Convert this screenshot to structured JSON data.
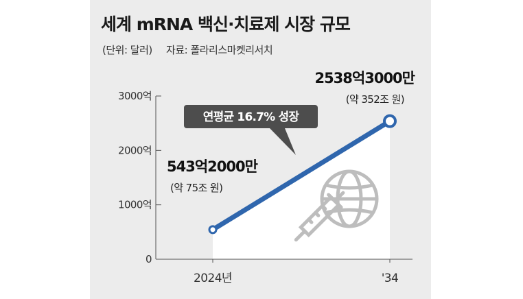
{
  "title": "세계 mRNA 백신·치료제 시장 규모",
  "unit": "(단위: 달러)",
  "source": "자료: 폴라리스마켓리서치",
  "colors": {
    "line": "#2f66ad",
    "callout_bg": "#4d4d4d",
    "panel_bg": "#ececec",
    "fill": "#ffffff"
  },
  "icons": [
    "globe-icon",
    "syringe-icon"
  ],
  "chart_data": {
    "type": "line",
    "title": "세계 mRNA 백신·치료제 시장 규모",
    "xlabel": "",
    "ylabel": "",
    "ylim": [
      0,
      3000
    ],
    "yticks": [
      {
        "value": 0,
        "label": "0"
      },
      {
        "value": 1000,
        "label": "1000억"
      },
      {
        "value": 2000,
        "label": "2000억"
      },
      {
        "value": 3000,
        "label": "3000억"
      }
    ],
    "x": [
      "2024년",
      "'34"
    ],
    "series": [
      {
        "values": [
          543.2,
          2538.3
        ]
      }
    ],
    "annotations": {
      "start_value": "543억2000만",
      "start_won": "(약 75조 원)",
      "end_value": "2538억3000만",
      "end_won": "(약 352조 원)",
      "callout": "연평균 16.7% 성장"
    }
  }
}
